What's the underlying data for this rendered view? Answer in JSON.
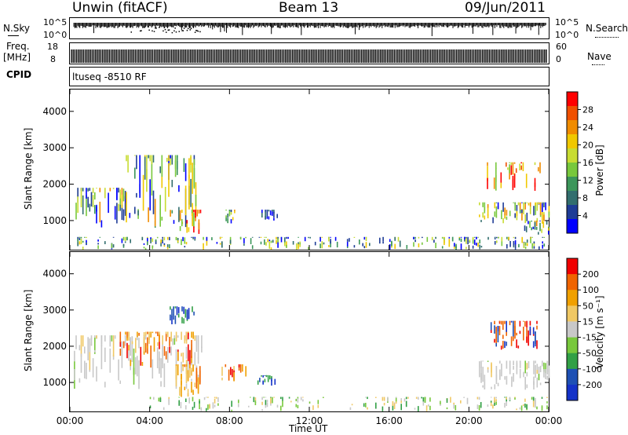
{
  "header": {
    "station": "Unwin (fitACF)",
    "beam": "Beam 13",
    "date": "09/Jun/2011"
  },
  "noise": {
    "left_label": "N.Sky",
    "right_label": "N.Search",
    "ticks_left": [
      "10^5",
      "10^0"
    ],
    "ticks_right": [
      "10^5",
      "10^0"
    ]
  },
  "freq": {
    "label_line1": "Freq.",
    "label_line2": "[MHz]",
    "ticks": [
      "18",
      "8"
    ],
    "nave_ticks": [
      "60",
      "0"
    ],
    "nave_label": "Nave",
    "cpid_label": "CPID"
  },
  "cpid_text": "ltuseq -8510 RF",
  "chart_data": [
    {
      "type": "heatmap",
      "name": "power",
      "ylabel": "Slant Range [km]",
      "ylim": [
        200,
        4600
      ],
      "y_ticks": [
        "4000",
        "3000",
        "2000",
        "1000"
      ],
      "y_tick_values": [
        4000,
        3000,
        2000,
        1000
      ],
      "x_ticks": [
        "00:00",
        "04:00",
        "08:00",
        "12:00",
        "16:00",
        "20:00",
        "00:00"
      ],
      "x_tick_values": [
        0,
        4,
        8,
        12,
        16,
        20,
        24
      ],
      "colorbar": {
        "label": "Power [dB]",
        "ticks": [
          "28",
          "24",
          "20",
          "16",
          "12",
          "8",
          "4"
        ],
        "colors": [
          "#0000ff",
          "#1e3c96",
          "#326e6e",
          "#3c965a",
          "#78c83c",
          "#c8dc32",
          "#f0c800",
          "#f08c00",
          "#f05000",
          "#ff0000"
        ]
      },
      "regions": [
        {
          "t0": 0.2,
          "t1": 2.8,
          "r0": 800,
          "r1": 1900,
          "tone": "mid"
        },
        {
          "t0": 2.8,
          "t1": 6.3,
          "r0": 800,
          "r1": 2800,
          "tone": "mid"
        },
        {
          "t0": 5.5,
          "t1": 6.6,
          "r0": 600,
          "r1": 1300,
          "tone": "high"
        },
        {
          "t0": 7.8,
          "t1": 8.5,
          "r0": 900,
          "r1": 1300,
          "tone": "mid"
        },
        {
          "t0": 9.6,
          "t1": 10.4,
          "r0": 1000,
          "r1": 1300,
          "tone": "low"
        },
        {
          "t0": 0.2,
          "t1": 23.9,
          "r0": 200,
          "r1": 550,
          "tone": "noise"
        },
        {
          "t0": 20.9,
          "t1": 23.6,
          "r0": 1800,
          "r1": 2600,
          "tone": "high"
        },
        {
          "t0": 20.5,
          "t1": 24.0,
          "r0": 900,
          "r1": 1500,
          "tone": "mid"
        },
        {
          "t0": 22.6,
          "t1": 24.0,
          "r0": 600,
          "r1": 1000,
          "tone": "mid"
        }
      ]
    },
    {
      "type": "heatmap",
      "name": "velocity",
      "ylabel": "Slant Range [km]",
      "ylim": [
        200,
        4600
      ],
      "y_ticks": [
        "4000",
        "3000",
        "2000",
        "1000"
      ],
      "y_tick_values": [
        4000,
        3000,
        2000,
        1000
      ],
      "x_ticks": [
        "00:00",
        "04:00",
        "08:00",
        "12:00",
        "16:00",
        "20:00",
        "00:00"
      ],
      "x_tick_values": [
        0,
        4,
        8,
        12,
        16,
        20,
        24
      ],
      "xlabel": "Time UT",
      "colorbar": {
        "label": "Velocity [m s⁻¹]",
        "ticks": [
          "200",
          "100",
          "50",
          "15",
          "-15",
          "-50",
          "-100",
          "-200"
        ],
        "colors": [
          "#1432c8",
          "#1e50b4",
          "#32a046",
          "#78c83c",
          "#c8c8c8",
          "#f0c864",
          "#f0a000",
          "#f06400",
          "#f00000"
        ]
      },
      "regions": [
        {
          "t0": 0.2,
          "t1": 6.6,
          "r0": 800,
          "r1": 2300,
          "tone": "grey"
        },
        {
          "t0": 2.5,
          "t1": 6.2,
          "r0": 1400,
          "r1": 2400,
          "tone": "neg"
        },
        {
          "t0": 5.3,
          "t1": 6.6,
          "r0": 600,
          "r1": 1500,
          "tone": "negsmall"
        },
        {
          "t0": 5.0,
          "t1": 6.2,
          "r0": 2600,
          "r1": 3100,
          "tone": "pos"
        },
        {
          "t0": 7.6,
          "t1": 8.8,
          "r0": 1000,
          "r1": 1500,
          "tone": "neg"
        },
        {
          "t0": 9.4,
          "t1": 10.3,
          "r0": 900,
          "r1": 1200,
          "tone": "pos"
        },
        {
          "t0": 4.0,
          "t1": 23.9,
          "r0": 200,
          "r1": 600,
          "tone": "lowvel"
        },
        {
          "t0": 20.5,
          "t1": 24.0,
          "r0": 800,
          "r1": 1600,
          "tone": "grey"
        },
        {
          "t0": 21.0,
          "t1": 23.6,
          "r0": 1900,
          "r1": 2700,
          "tone": "negpos"
        }
      ]
    }
  ]
}
